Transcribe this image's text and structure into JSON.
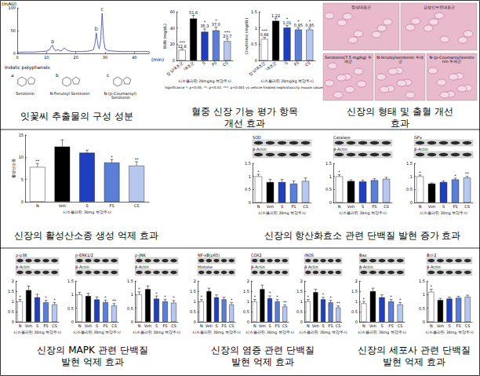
{
  "chart_data": [
    {
      "type": "line",
      "x": [
        0,
        3,
        6,
        8,
        10,
        11,
        11.5,
        12,
        12.5,
        13,
        14,
        15,
        16,
        17,
        18,
        19,
        20,
        22,
        24,
        25,
        26,
        26.5,
        27,
        27.5,
        28,
        28.5,
        29,
        29.5,
        30,
        31,
        33,
        36,
        40,
        45
      ],
      "values": [
        2,
        3,
        3,
        4,
        5,
        8,
        14,
        18,
        10,
        6,
        8,
        5,
        12,
        7,
        5,
        4,
        4,
        4,
        5,
        6,
        8,
        20,
        45,
        20,
        10,
        30,
        88,
        30,
        10,
        6,
        5,
        4,
        4,
        4
      ],
      "color": "#2f3fc0",
      "xlim": [
        0,
        45
      ],
      "xticks": [
        0,
        10,
        20,
        30,
        40
      ],
      "ylim": [
        0,
        100
      ],
      "yticks": [
        0,
        50,
        100
      ],
      "xlabel": "(min)",
      "ylabel": "(mAU)",
      "annotations": [
        {
          "text": "a",
          "x": 12,
          "y": 18
        },
        {
          "text": "b",
          "x": 27,
          "y": 45
        },
        {
          "text": "c",
          "x": 29,
          "y": 88
        }
      ],
      "grid": false
    },
    {
      "type": "bar",
      "categories": [
        "정상대조군",
        "대조군",
        "S",
        "FS",
        "CS"
      ],
      "values": [
        12.8,
        51.6,
        35.3,
        37.0,
        23.7
      ],
      "value_labels": [
        "12.8",
        "51.6",
        "35.3",
        "37.0",
        "23.7"
      ],
      "errors": [
        1.5,
        4,
        3.5,
        4,
        3
      ],
      "significance": [
        "***",
        null,
        "*",
        "*",
        "***"
      ],
      "colors": [
        "#ffffff",
        "#000000",
        "#1f3fbf",
        "#5b7fd9",
        "#b7c8f0"
      ],
      "ylim": [
        0,
        60
      ],
      "yticks": [
        0,
        20,
        40,
        60
      ],
      "ylabel": "BUN (mg/dL)",
      "xlabel": "시스플라틴 20mg/kg 복강주사",
      "data_labels": true,
      "grid": false,
      "note": "Significance *: p<0.05, **: p<0.01, ***: p<0.001 vs vehicle-treated nephrotoxicity mouse values."
    },
    {
      "type": "bar",
      "categories": [
        "정상대조군",
        "대조군",
        "S",
        "FS",
        "CS"
      ],
      "values": [
        0.66,
        1.22,
        1.01,
        0.95,
        0.95
      ],
      "value_labels": [
        "0.66",
        "1.22",
        "1.01",
        "0.95",
        "0.95"
      ],
      "errors": [
        0.05,
        0.08,
        0.07,
        0.06,
        0.06
      ],
      "significance": [
        "***",
        null,
        "*",
        "*",
        "*"
      ],
      "colors": [
        "#ffffff",
        "#000000",
        "#1f3fbf",
        "#5b7fd9",
        "#b7c8f0"
      ],
      "ylim": [
        0,
        1.5
      ],
      "yticks": [
        0,
        0.5,
        1,
        1.5
      ],
      "ylabel": "Creatinine (mg/dL)",
      "xlabel": "시스플라틴 20mg/kg 복강주사",
      "data_labels": true,
      "grid": false
    },
    {
      "type": "bar",
      "categories": [
        "N",
        "Veh",
        "S",
        "FS",
        "CS"
      ],
      "values": [
        7.8,
        12.4,
        11.0,
        8.8,
        8.1
      ],
      "errors": [
        0.8,
        1.5,
        0.6,
        0.7,
        0.9
      ],
      "significance": [
        "**",
        null,
        null,
        "*",
        "**"
      ],
      "colors": [
        "#ffffff",
        "#000000",
        "#1f3fbf",
        "#5b7fd9",
        "#b7c8f0"
      ],
      "ylim": [
        0,
        15
      ],
      "yticks": [
        0,
        5,
        10,
        15
      ],
      "ylabel": "활성산소종",
      "xlabel": "시스플라틴 20mg 복강주사",
      "grid": false
    },
    {
      "type": "bar",
      "blot_labels": [
        "SOD",
        "β-Actin"
      ],
      "categories": [
        "N",
        "Veh",
        "S",
        "FS",
        "CS"
      ],
      "values": [
        1.0,
        0.78,
        0.78,
        0.72,
        0.82
      ],
      "errors": [
        0.08,
        0.1,
        0.1,
        0.1,
        0.12
      ],
      "significance": [
        "*",
        null,
        null,
        null,
        null
      ],
      "colors": [
        "#ffffff",
        "#000000",
        "#1f3fbf",
        "#5b7fd9",
        "#b7c8f0"
      ],
      "ylim": [
        0,
        1.5
      ],
      "yticks": [
        0,
        0.5,
        1,
        1.5
      ],
      "xlabel": "시스플라틴 20mg 복강주사",
      "grid": false
    },
    {
      "type": "bar",
      "blot_labels": [
        "Catalase",
        "β-Actin"
      ],
      "categories": [
        "N",
        "Veh",
        "S",
        "FS",
        "CS"
      ],
      "values": [
        1.0,
        0.82,
        0.8,
        0.85,
        0.9
      ],
      "errors": [
        0.06,
        0.05,
        0.05,
        0.06,
        0.06
      ],
      "significance": [
        "*",
        null,
        null,
        null,
        null
      ],
      "colors": [
        "#ffffff",
        "#000000",
        "#1f3fbf",
        "#5b7fd9",
        "#b7c8f0"
      ],
      "ylim": [
        0,
        1.5
      ],
      "yticks": [
        0,
        0.5,
        1,
        1.5
      ],
      "xlabel": "시스플라틴 20mg 복강주사",
      "grid": false
    },
    {
      "type": "bar",
      "blot_labels": [
        "GPx",
        "β-Actin"
      ],
      "categories": [
        "N",
        "Veh",
        "S",
        "FS",
        "CS"
      ],
      "values": [
        1.0,
        0.72,
        0.78,
        0.88,
        0.95
      ],
      "errors": [
        0.05,
        0.03,
        0.04,
        0.05,
        0.05
      ],
      "significance": [
        "*",
        null,
        null,
        "*",
        "**"
      ],
      "colors": [
        "#ffffff",
        "#000000",
        "#1f3fbf",
        "#5b7fd9",
        "#b7c8f0"
      ],
      "ylim": [
        0,
        1.5
      ],
      "yticks": [
        0,
        0.5,
        1,
        1.5
      ],
      "xlabel": "시스플라틴 20mg 복강주사",
      "grid": false
    },
    {
      "type": "bar",
      "blot_labels": [
        "p-p38",
        "β-Actin"
      ],
      "categories": [
        "N",
        "Veh",
        "S",
        "FS",
        "CS"
      ],
      "values": [
        1.0,
        1.55,
        1.2,
        0.95,
        0.85
      ],
      "errors": [
        0.1,
        0.2,
        0.15,
        0.1,
        0.1
      ],
      "significance": [
        "*",
        null,
        null,
        "*",
        "*"
      ],
      "colors": [
        "#ffffff",
        "#000000",
        "#1f3fbf",
        "#5b7fd9",
        "#b7c8f0"
      ],
      "ylim": [
        0,
        2
      ],
      "yticks": [
        0,
        0.5,
        1,
        1.5,
        2
      ],
      "xlabel": "시스플라틴 20mg 복강주사",
      "grid": false
    },
    {
      "type": "bar",
      "blot_labels": [
        "p-ERK1/2",
        "β-Actin"
      ],
      "categories": [
        "N",
        "Veh",
        "S",
        "FS",
        "CS"
      ],
      "values": [
        1.0,
        0.95,
        0.82,
        0.72,
        0.6
      ],
      "errors": [
        0.08,
        0.1,
        0.1,
        0.08,
        0.07
      ],
      "significance": [
        null,
        null,
        null,
        "*",
        "**"
      ],
      "colors": [
        "#ffffff",
        "#000000",
        "#1f3fbf",
        "#5b7fd9",
        "#b7c8f0"
      ],
      "ylim": [
        0,
        1.5
      ],
      "yticks": [
        0,
        0.5,
        1,
        1.5
      ],
      "xlabel": "시스플라틴 20mg 복강주사",
      "grid": false
    },
    {
      "type": "bar",
      "blot_labels": [
        "p-JNK",
        "β-Actin"
      ],
      "categories": [
        "N",
        "Veh",
        "S",
        "FS",
        "CS"
      ],
      "values": [
        1.0,
        1.2,
        0.85,
        0.75,
        0.7
      ],
      "errors": [
        0.1,
        0.12,
        0.1,
        0.08,
        0.08
      ],
      "significance": [
        "*",
        null,
        "*",
        "*",
        "*"
      ],
      "colors": [
        "#ffffff",
        "#000000",
        "#1f3fbf",
        "#5b7fd9",
        "#b7c8f0"
      ],
      "ylim": [
        0,
        1.5
      ],
      "yticks": [
        0,
        0.5,
        1,
        1.5
      ],
      "xlabel": "시스플라틴 20mg 복강주사",
      "grid": false
    },
    {
      "type": "bar",
      "blot_labels": [
        "NF-κB(p65)",
        "Histone"
      ],
      "categories": [
        "N",
        "Veh",
        "S",
        "FS",
        "CS"
      ],
      "values": [
        1.0,
        1.5,
        1.2,
        1.1,
        0.85
      ],
      "errors": [
        0.1,
        0.15,
        0.12,
        0.1,
        0.1
      ],
      "significance": [
        "*",
        null,
        null,
        null,
        "*"
      ],
      "colors": [
        "#ffffff",
        "#000000",
        "#1f3fbf",
        "#5b7fd9",
        "#b7c8f0"
      ],
      "ylim": [
        0,
        2
      ],
      "yticks": [
        0,
        0.5,
        1,
        1.5,
        2
      ],
      "xlabel": "시스플라틴 20mg 복강주사",
      "grid": false
    },
    {
      "type": "bar",
      "blot_labels": [
        "COX2",
        "β-Actin"
      ],
      "categories": [
        "N",
        "Veh",
        "S",
        "FS",
        "CS"
      ],
      "values": [
        1.0,
        1.6,
        1.15,
        1.0,
        0.75
      ],
      "errors": [
        0.1,
        0.2,
        0.12,
        0.1,
        0.08
      ],
      "significance": [
        "*",
        null,
        "*",
        "*",
        "**"
      ],
      "colors": [
        "#ffffff",
        "#000000",
        "#1f3fbf",
        "#5b7fd9",
        "#b7c8f0"
      ],
      "ylim": [
        0,
        2
      ],
      "yticks": [
        0,
        0.5,
        1,
        1.5,
        2
      ],
      "xlabel": "시스플라틴 20mg 복강주사",
      "grid": false
    },
    {
      "type": "bar",
      "blot_labels": [
        "iNOS",
        "β-Actin"
      ],
      "categories": [
        "N",
        "Veh",
        "S",
        "FS",
        "CS"
      ],
      "values": [
        1.0,
        1.45,
        1.1,
        0.95,
        0.7
      ],
      "errors": [
        0.1,
        0.15,
        0.1,
        0.1,
        0.08
      ],
      "significance": [
        "*",
        null,
        "*",
        "*",
        "**"
      ],
      "colors": [
        "#ffffff",
        "#000000",
        "#1f3fbf",
        "#5b7fd9",
        "#b7c8f0"
      ],
      "ylim": [
        0,
        2
      ],
      "yticks": [
        0,
        0.5,
        1,
        1.5,
        2
      ],
      "xlabel": "시스플라틴 20mg 복강주사",
      "grid": false
    },
    {
      "type": "bar",
      "blot_labels": [
        "Bax",
        "β-Actin"
      ],
      "categories": [
        "N",
        "Veh",
        "S",
        "FS",
        "CS"
      ],
      "values": [
        0.9,
        1.5,
        1.2,
        1.0,
        0.85
      ],
      "errors": [
        0.1,
        0.15,
        0.12,
        0.1,
        0.1
      ],
      "significance": [
        "*",
        null,
        null,
        "*",
        "*"
      ],
      "colors": [
        "#ffffff",
        "#000000",
        "#1f3fbf",
        "#5b7fd9",
        "#b7c8f0"
      ],
      "ylim": [
        0,
        2
      ],
      "yticks": [
        0,
        0.5,
        1,
        1.5,
        2
      ],
      "xlabel": "시스플라틴 20mg 복강주사",
      "grid": false
    },
    {
      "type": "bar",
      "blot_labels": [
        "Bcl-2",
        "β-Actin"
      ],
      "categories": [
        "N",
        "Veh",
        "S",
        "FS",
        "CS"
      ],
      "values": [
        1.1,
        0.8,
        0.85,
        0.88,
        0.92
      ],
      "errors": [
        0.1,
        0.06,
        0.06,
        0.06,
        0.06
      ],
      "significance": [
        "*",
        null,
        null,
        null,
        null
      ],
      "colors": [
        "#ffffff",
        "#000000",
        "#1f3fbf",
        "#5b7fd9",
        "#b7c8f0"
      ],
      "ylim": [
        0,
        1.5
      ],
      "yticks": [
        0,
        0.5,
        1,
        1.5
      ],
      "xlabel": "시스플라틴 20mg 복강주사",
      "grid": false
    }
  ],
  "captions": [
    "잇꽃씨 추출물의 구성 성분",
    "혈중 신장 기능 평가 항목\n개선 효과",
    "신장의 형태 및 출혈 개선\n효과",
    "신장의 활성산소종 생성 억제 효과",
    "신장의 항산화효소 관련 단백질 발현 증가 효과",
    "신장의 MAPK 관련 단백질\n발현 억제 효과",
    "신장의 염증 관련 단백질\n발현 억제 효과",
    "신장의 세포사 관련 단백질\n발현 억제 효과"
  ],
  "histology": {
    "labels": [
      "정상대조군",
      "급성신부전대조군",
      "Serotonin(7.5 mg/kg) 투여군",
      "N-feruloylserotonin 투여군",
      "N-(p-Coumaroyl)serotonin 투여군"
    ]
  },
  "structures": {
    "title": "Indolic polyphenols",
    "compounds": [
      {
        "letter": "a",
        "name": "Serotonin"
      },
      {
        "letter": "b",
        "name": "N-Feruloyl Serotonin"
      },
      {
        "letter": "c",
        "name": "N-(p-Coumaroyl) Serotonin"
      }
    ]
  }
}
